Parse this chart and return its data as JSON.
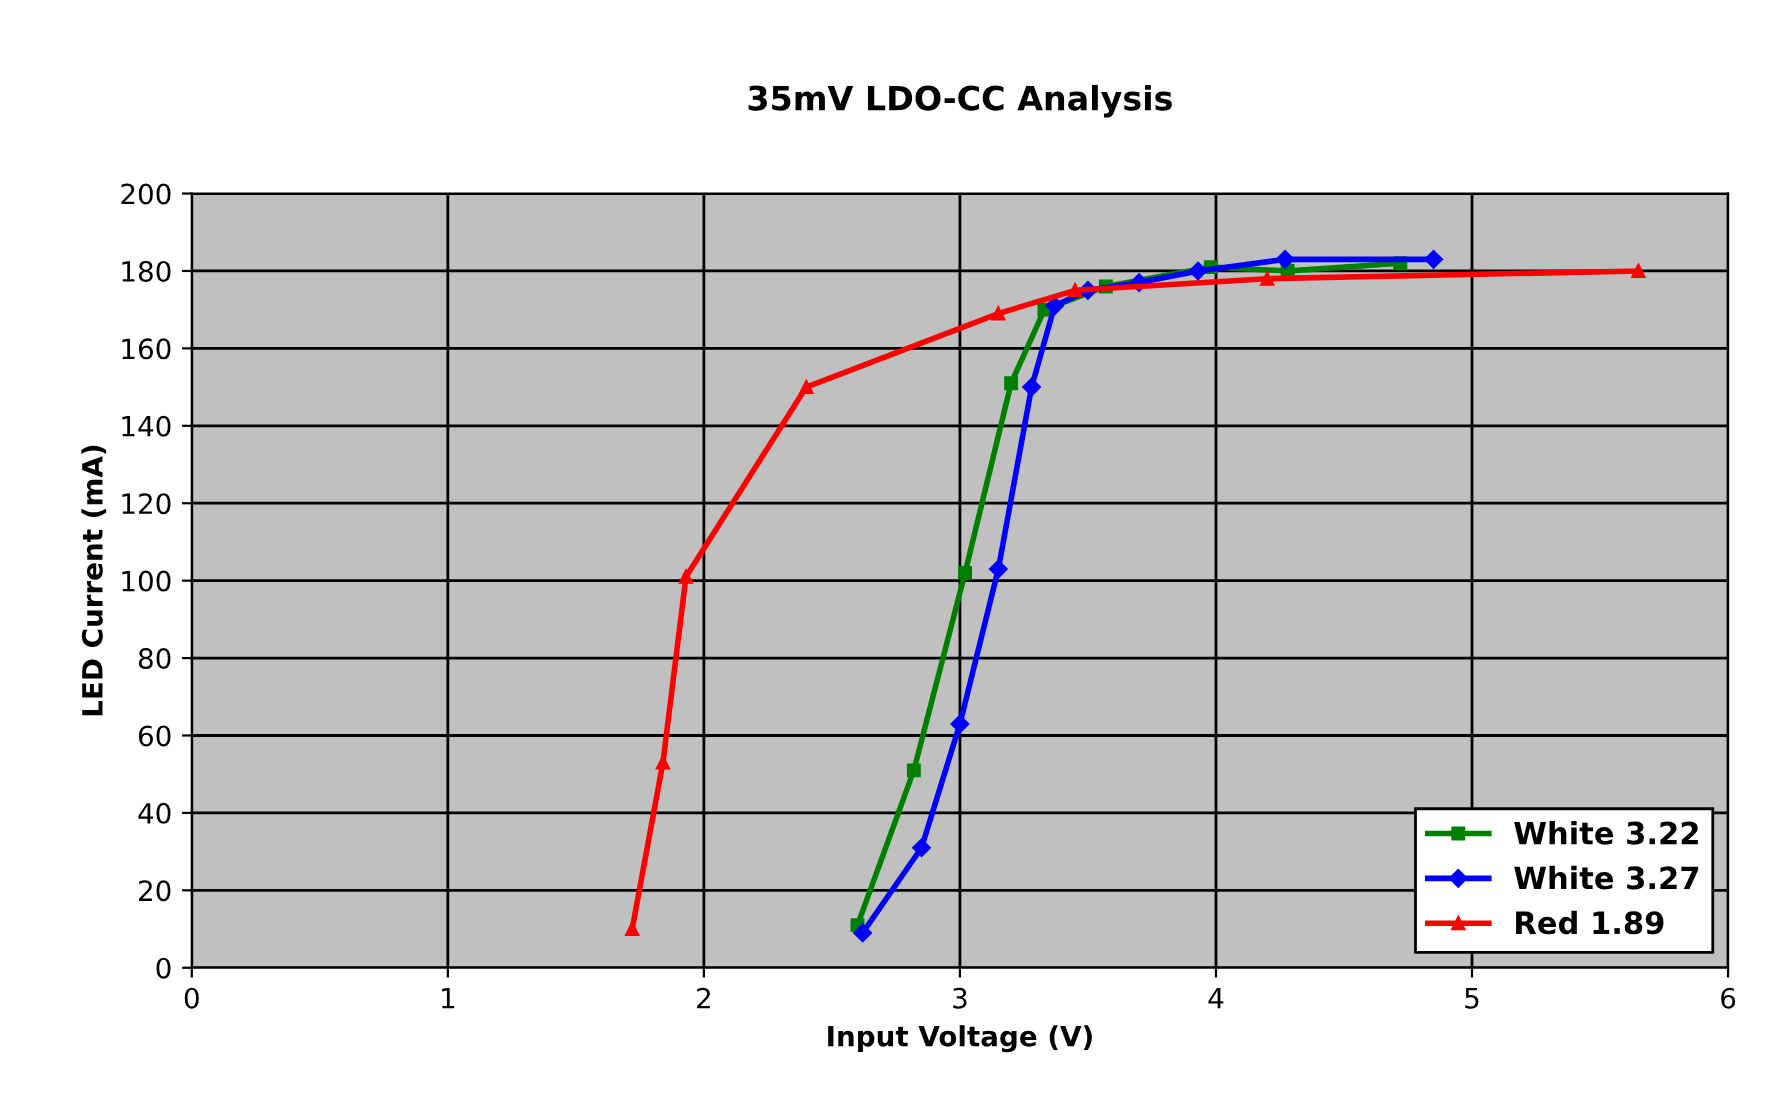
{
  "chart_data": {
    "type": "line",
    "title": "35mV LDO-CC Analysis",
    "xlabel": "Input Voltage (V)",
    "ylabel": "LED Current (mA)",
    "xlim": [
      0,
      6
    ],
    "xticks": [
      0,
      1,
      2,
      3,
      4,
      5,
      6
    ],
    "ylim": [
      0,
      200
    ],
    "yticks": [
      0,
      20,
      40,
      60,
      80,
      100,
      120,
      140,
      160,
      180,
      200
    ],
    "grid": true,
    "legend": "bottom right",
    "series": [
      {
        "name": "White 3.22",
        "color": "#008000",
        "marker": "square",
        "x": [
          2.6,
          2.82,
          3.02,
          3.2,
          3.33,
          3.57,
          3.98,
          4.28,
          4.72
        ],
        "values": [
          11,
          51,
          102,
          151,
          170,
          176,
          181,
          180,
          182
        ]
      },
      {
        "name": "White 3.27",
        "color": "#0000ff",
        "marker": "diamond",
        "x": [
          2.62,
          2.85,
          3.0,
          3.15,
          3.28,
          3.37,
          3.5,
          3.7,
          3.93,
          4.27,
          4.85
        ],
        "values": [
          9,
          31,
          63,
          103,
          150,
          171,
          175,
          177,
          180,
          183,
          183
        ]
      },
      {
        "name": "Red 1.89",
        "color": "#ff0000",
        "marker": "triangle",
        "x": [
          1.72,
          1.84,
          1.93,
          2.4,
          3.15,
          3.45,
          4.2,
          5.65
        ],
        "values": [
          10,
          53,
          101,
          150,
          169,
          175,
          178,
          180
        ]
      }
    ]
  }
}
